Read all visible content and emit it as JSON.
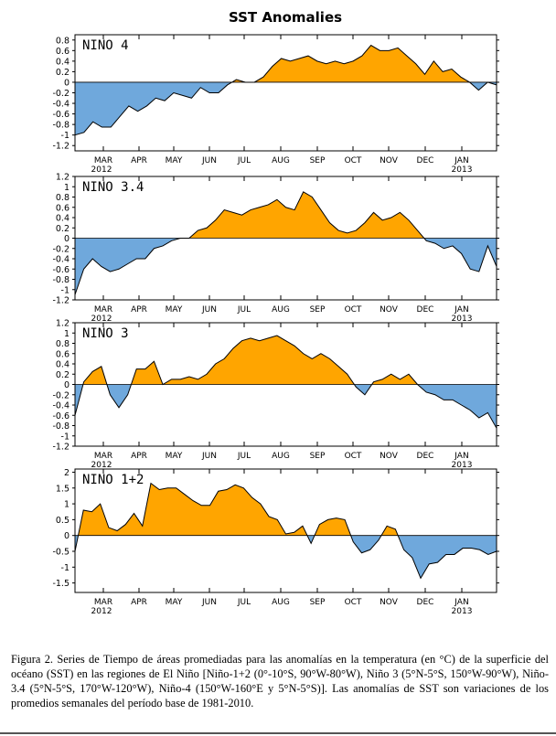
{
  "title": "SST Anomalies",
  "caption": "Figura 2. Series de Tiempo de áreas promediadas para las anomalías en la temperatura (en °C) de la superficie del océano (SST) en las regiones de El Niño [Niño-1+2 (0°-10°S, 90°W-80°W), Niño 3 (5°N-5°S, 150°W-90°W), Niño-3.4 (5°N-5°S, 170°W-120°W), Niño-4 (150°W-160°E y 5°N-5°S)]. Las anomalías de SST son variaciones de los promedios semanales del período base de 1981-2010.",
  "colors": {
    "positive": "#ffa500",
    "negative": "#6fa8dc",
    "line": "#000000"
  },
  "chart_data": [
    {
      "type": "area",
      "panel_label": "NINO 4",
      "ylim": [
        -1.3,
        0.9
      ],
      "yticks": [
        0.8,
        0.6,
        0.4,
        0.2,
        0,
        -0.2,
        -0.4,
        -0.6,
        -0.8,
        -1,
        -1.2
      ],
      "ytick_labels": [
        "0.8",
        "0.6",
        "0.4",
        "0.2",
        "0",
        "-0.2",
        "-0.4",
        "-0.6",
        "-0.8",
        "-1",
        "-1.2"
      ],
      "xticks": [
        "MAR",
        "APR",
        "MAY",
        "JUN",
        "JUL",
        "AUG",
        "SEP",
        "OCT",
        "NOV",
        "DEC",
        "JAN"
      ],
      "year_labels": [
        "2012",
        "2013"
      ],
      "values": [
        -1.0,
        -0.95,
        -0.75,
        -0.85,
        -0.85,
        -0.65,
        -0.45,
        -0.55,
        -0.45,
        -0.3,
        -0.35,
        -0.2,
        -0.25,
        -0.3,
        -0.1,
        -0.2,
        -0.2,
        -0.05,
        0.05,
        0.0,
        0.0,
        0.1,
        0.3,
        0.45,
        0.4,
        0.45,
        0.5,
        0.4,
        0.35,
        0.4,
        0.35,
        0.4,
        0.5,
        0.7,
        0.6,
        0.6,
        0.65,
        0.5,
        0.35,
        0.15,
        0.4,
        0.2,
        0.25,
        0.1,
        0.0,
        -0.15,
        0.0,
        -0.05
      ]
    },
    {
      "type": "area",
      "panel_label": "NINO 3.4",
      "ylim": [
        -1.2,
        1.2
      ],
      "yticks": [
        1.2,
        1,
        0.8,
        0.6,
        0.4,
        0.2,
        0,
        -0.2,
        -0.4,
        -0.6,
        -0.8,
        -1,
        -1.2
      ],
      "ytick_labels": [
        "1.2",
        "1",
        "0.8",
        "0.6",
        "0.4",
        "0.2",
        "0",
        "-0.2",
        "-0.4",
        "-0.6",
        "-0.8",
        "-1",
        "-1.2"
      ],
      "xticks": [
        "MAR",
        "APR",
        "MAY",
        "JUN",
        "JUL",
        "AUG",
        "SEP",
        "OCT",
        "NOV",
        "DEC",
        "JAN"
      ],
      "year_labels": [
        "2012",
        "2013"
      ],
      "values": [
        -1.1,
        -0.6,
        -0.4,
        -0.55,
        -0.65,
        -0.6,
        -0.5,
        -0.4,
        -0.4,
        -0.2,
        -0.15,
        -0.05,
        0.0,
        0.0,
        0.15,
        0.2,
        0.35,
        0.55,
        0.5,
        0.45,
        0.55,
        0.6,
        0.65,
        0.75,
        0.6,
        0.55,
        0.9,
        0.8,
        0.55,
        0.3,
        0.15,
        0.1,
        0.15,
        0.3,
        0.5,
        0.35,
        0.4,
        0.5,
        0.35,
        0.15,
        -0.05,
        -0.1,
        -0.2,
        -0.15,
        -0.3,
        -0.6,
        -0.65,
        -0.15,
        -0.55
      ]
    },
    {
      "type": "area",
      "panel_label": "NINO 3",
      "ylim": [
        -1.2,
        1.2
      ],
      "yticks": [
        1.2,
        1,
        0.8,
        0.6,
        0.4,
        0.2,
        0,
        -0.2,
        -0.4,
        -0.6,
        -0.8,
        -1,
        -1.2
      ],
      "ytick_labels": [
        "1.2",
        "1",
        "0.8",
        "0.6",
        "0.4",
        "0.2",
        "0",
        "-0.2",
        "-0.4",
        "-0.6",
        "-0.8",
        "-1",
        "-1.2"
      ],
      "xticks": [
        "MAR",
        "APR",
        "MAY",
        "JUN",
        "JUL",
        "AUG",
        "SEP",
        "OCT",
        "NOV",
        "DEC",
        "JAN"
      ],
      "year_labels": [
        "2012",
        "2013"
      ],
      "values": [
        -0.6,
        0.05,
        0.25,
        0.35,
        -0.2,
        -0.45,
        -0.2,
        0.3,
        0.3,
        0.45,
        0.0,
        0.1,
        0.1,
        0.15,
        0.1,
        0.2,
        0.4,
        0.5,
        0.7,
        0.85,
        0.9,
        0.85,
        0.9,
        0.95,
        0.85,
        0.75,
        0.6,
        0.5,
        0.6,
        0.5,
        0.35,
        0.2,
        -0.05,
        -0.2,
        0.05,
        0.1,
        0.2,
        0.1,
        0.2,
        0.0,
        -0.15,
        -0.2,
        -0.3,
        -0.3,
        -0.4,
        -0.5,
        -0.65,
        -0.55,
        -0.85
      ]
    },
    {
      "type": "area",
      "panel_label": "NINO 1+2",
      "ylim": [
        -1.8,
        2.1
      ],
      "yticks": [
        2,
        1.5,
        1,
        0.5,
        0,
        -0.5,
        -1,
        -1.5
      ],
      "ytick_labels": [
        "2",
        "1.5",
        "1",
        "0.5",
        "0",
        "-0.5",
        "-1",
        "-1.5"
      ],
      "xticks": [
        "MAR",
        "APR",
        "MAY",
        "JUN",
        "JUL",
        "AUG",
        "SEP",
        "OCT",
        "NOV",
        "DEC",
        "JAN"
      ],
      "year_labels": [
        "2012",
        "2013"
      ],
      "values": [
        -0.5,
        0.8,
        0.75,
        1.0,
        0.25,
        0.15,
        0.35,
        0.7,
        0.3,
        1.65,
        1.45,
        1.5,
        1.5,
        1.3,
        1.1,
        0.95,
        0.95,
        1.4,
        1.45,
        1.6,
        1.5,
        1.2,
        1.0,
        0.6,
        0.5,
        0.05,
        0.1,
        0.3,
        -0.25,
        0.35,
        0.5,
        0.55,
        0.5,
        -0.2,
        -0.55,
        -0.45,
        -0.15,
        0.3,
        0.2,
        -0.45,
        -0.7,
        -1.35,
        -0.9,
        -0.85,
        -0.6,
        -0.6,
        -0.4,
        -0.4,
        -0.45,
        -0.6,
        -0.5
      ]
    }
  ]
}
